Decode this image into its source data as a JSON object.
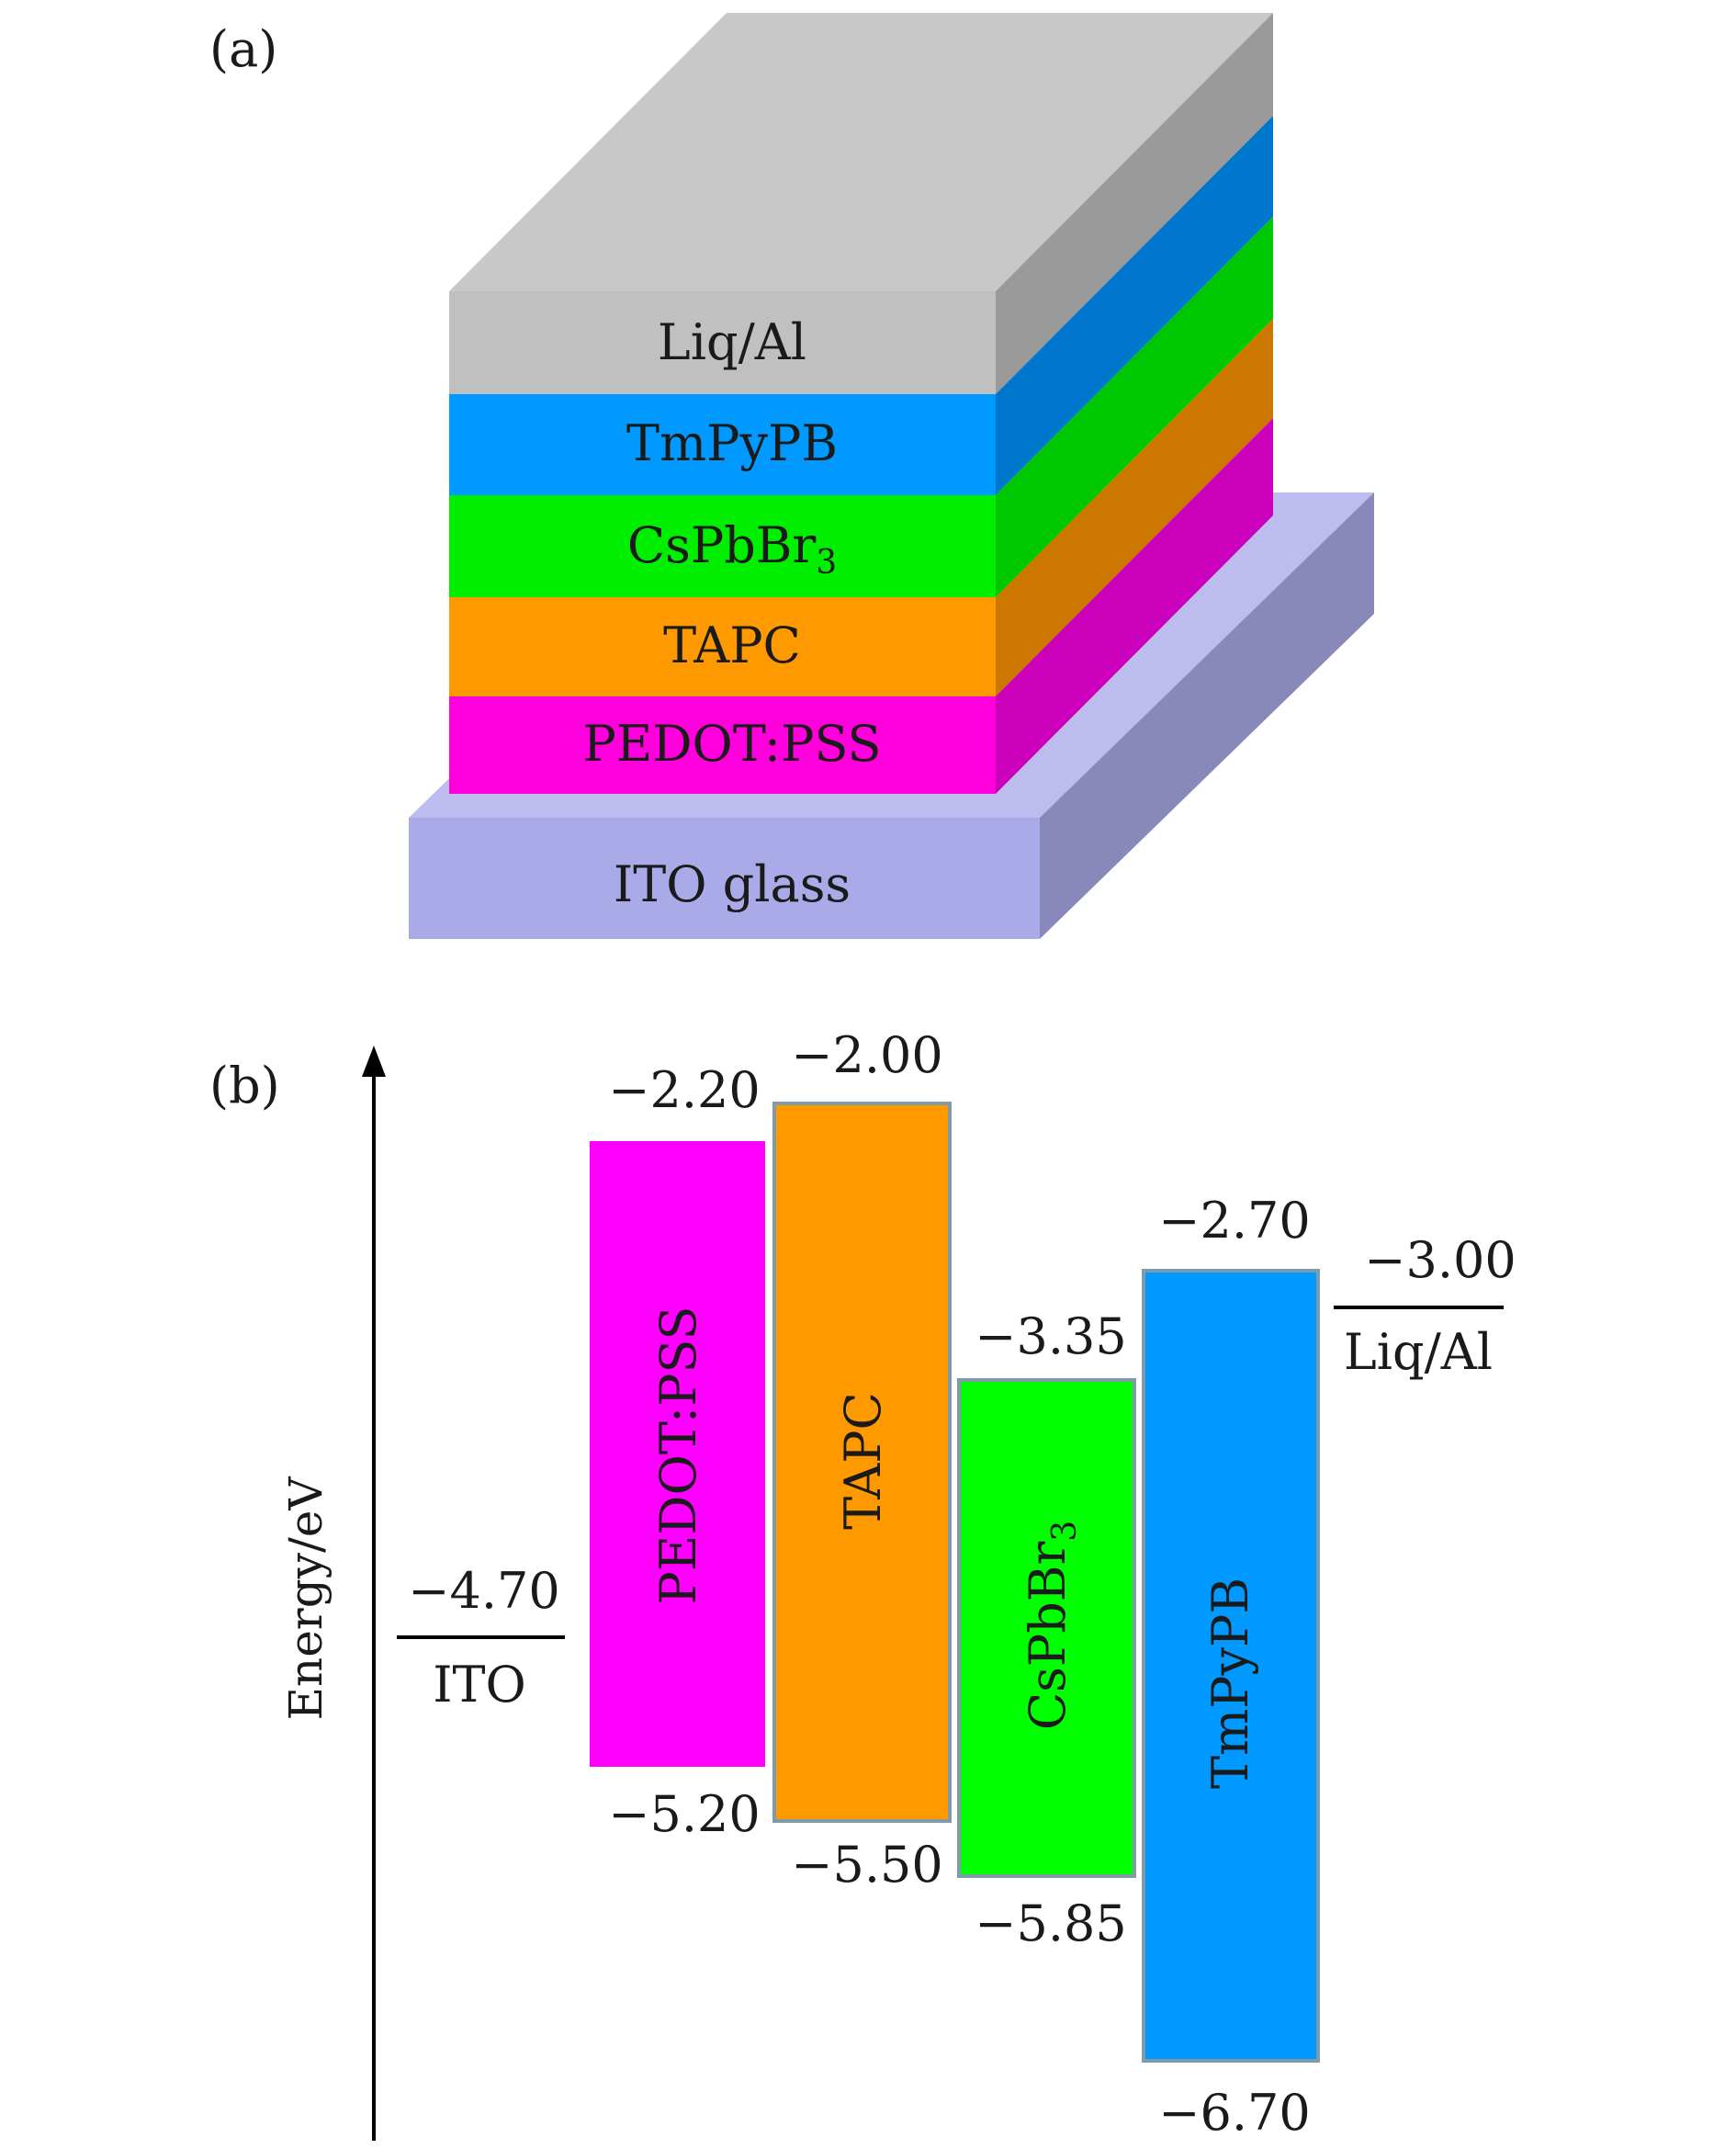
{
  "panel_a": {
    "label": "(a)",
    "layers": [
      {
        "name": "Liq/Al",
        "front": "#c0c0c0",
        "side": "#9a9a9a",
        "top": "#c8c8c8"
      },
      {
        "name": "TmPyPB",
        "front": "#0099ff",
        "side": "#0077cc"
      },
      {
        "name": "CsPbBr",
        "subscript": "3",
        "front": "#00ee00",
        "side": "#00c800"
      },
      {
        "name": "TAPC",
        "front": "#ff9900",
        "side": "#cc7700"
      },
      {
        "name": "PEDOT:PSS",
        "front": "#ff00dd",
        "side": "#cc00bb"
      }
    ],
    "substrate": {
      "name": "ITO glass",
      "front": "#aaaae8",
      "side": "#8888bb",
      "top": "#bcbcee"
    }
  },
  "panel_b": {
    "label": "(b)",
    "axis_label": "Energy/eV",
    "levels": [
      {
        "name": "ITO",
        "value": "−4.70"
      },
      {
        "name": "Liq/Al",
        "value": "−3.00"
      }
    ],
    "bands": [
      {
        "name": "PEDOT:PSS",
        "top_value": "−2.20",
        "bottom_value": "−5.20",
        "color": "#ff00ff"
      },
      {
        "name": "TAPC",
        "top_value": "−2.00",
        "bottom_value": "−5.50",
        "color": "#ff9900"
      },
      {
        "name": "CsPbBr",
        "subscript": "3",
        "top_value": "−3.35",
        "bottom_value": "−5.85",
        "color": "#00ff00"
      },
      {
        "name": "TmPyPB",
        "top_value": "−2.70",
        "bottom_value": "−6.70",
        "color": "#0099ff"
      }
    ]
  }
}
